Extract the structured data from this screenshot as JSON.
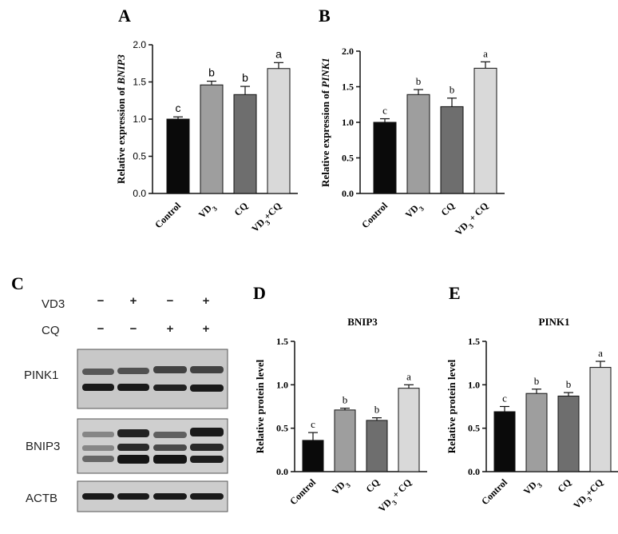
{
  "panels": {
    "A": "A",
    "B": "B",
    "C": "C",
    "D": "D",
    "E": "E"
  },
  "chart_data": [
    {
      "id": "A",
      "type": "bar",
      "ylabel_prefix": "Relative expression of ",
      "ylabel_gene": "BNIP3",
      "categories": [
        "Control",
        "VD3",
        "CQ",
        "VD3+CQ"
      ],
      "values": [
        1.0,
        1.46,
        1.33,
        1.68
      ],
      "errors": [
        0.03,
        0.05,
        0.11,
        0.08
      ],
      "letters": [
        "c",
        "b",
        "b",
        "a"
      ],
      "ylim": [
        0,
        2.0
      ],
      "yticks": [
        "0.0",
        "0.5",
        "1.0",
        "1.5",
        "2.0"
      ],
      "colors": [
        "#0a0a0a",
        "#9e9e9e",
        "#6e6e6e",
        "#d9d9d9"
      ]
    },
    {
      "id": "B",
      "type": "bar",
      "ylabel_prefix": "Relative expression of ",
      "ylabel_gene": "PINK1",
      "categories": [
        "Control",
        "VD3",
        "CQ",
        "VD3 + CQ"
      ],
      "values": [
        1.0,
        1.39,
        1.22,
        1.76
      ],
      "errors": [
        0.05,
        0.07,
        0.12,
        0.09
      ],
      "letters": [
        "c",
        "b",
        "b",
        "a"
      ],
      "ylim": [
        0,
        2.0
      ],
      "yticks": [
        "0.0",
        "0.5",
        "1.0",
        "1.5",
        "2.0"
      ],
      "colors": [
        "#0a0a0a",
        "#9e9e9e",
        "#6e6e6e",
        "#d9d9d9"
      ]
    },
    {
      "id": "D",
      "type": "bar",
      "title": "BNIP3",
      "ylabel": "Relative protein level",
      "categories": [
        "Control",
        "VD3",
        "CQ",
        "VD3 + CQ"
      ],
      "values": [
        0.36,
        0.71,
        0.59,
        0.96
      ],
      "errors": [
        0.09,
        0.02,
        0.03,
        0.04
      ],
      "letters": [
        "c",
        "b",
        "b",
        "a"
      ],
      "ylim": [
        0,
        1.5
      ],
      "yticks": [
        "0.0",
        "0.5",
        "1.0",
        "1.5"
      ],
      "colors": [
        "#0a0a0a",
        "#9e9e9e",
        "#6e6e6e",
        "#d9d9d9"
      ]
    },
    {
      "id": "E",
      "type": "bar",
      "title": "PINK1",
      "ylabel": "Relative protein level",
      "categories": [
        "Control",
        "VD3",
        "CQ",
        "VD3+CQ"
      ],
      "values": [
        0.69,
        0.9,
        0.87,
        1.2
      ],
      "errors": [
        0.06,
        0.05,
        0.04,
        0.07
      ],
      "letters": [
        "c",
        "b",
        "b",
        "a"
      ],
      "ylim": [
        0,
        1.5
      ],
      "yticks": [
        "0.0",
        "0.5",
        "1.0",
        "1.5"
      ],
      "colors": [
        "#0a0a0a",
        "#9e9e9e",
        "#6e6e6e",
        "#d9d9d9"
      ]
    }
  ],
  "blot": {
    "rows": [
      {
        "label": "VD3",
        "signs": [
          "−",
          "+",
          "−",
          "+"
        ]
      },
      {
        "label": "CQ",
        "signs": [
          "−",
          "−",
          "+",
          "+"
        ]
      }
    ],
    "bands": [
      "PINK1",
      "BNIP3",
      "ACTB"
    ]
  }
}
